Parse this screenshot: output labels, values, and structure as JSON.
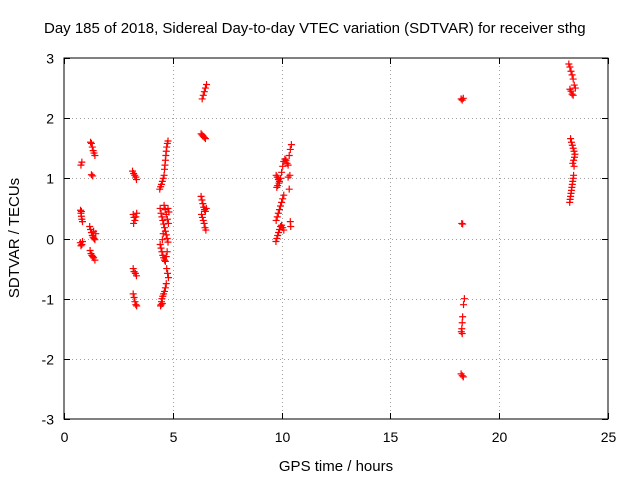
{
  "chart_data": {
    "type": "scatter",
    "title": "Day 185 of 2018, Sidereal Day-to-day VTEC variation (SDTVAR) for receiver sthg",
    "xlabel": "GPS time / hours",
    "ylabel": "SDTVAR / TECUs",
    "xlim": [
      0,
      25
    ],
    "ylim": [
      -3,
      3
    ],
    "xticks": [
      0,
      5,
      10,
      15,
      20,
      25
    ],
    "yticks": [
      -3,
      -2,
      -1,
      0,
      1,
      2,
      3
    ],
    "grid": true,
    "legend": "none",
    "marker": "plus",
    "color": "#ff0000",
    "series": [
      {
        "name": "SDTVAR",
        "points": [
          [
            0.78,
            1.22
          ],
          [
            0.82,
            1.27
          ],
          [
            0.76,
            0.47
          ],
          [
            0.78,
            0.42
          ],
          [
            0.8,
            0.37
          ],
          [
            0.82,
            0.32
          ],
          [
            0.85,
            0.28
          ],
          [
            0.8,
            0.45
          ],
          [
            0.75,
            -0.07
          ],
          [
            0.78,
            -0.12
          ],
          [
            0.82,
            -0.1
          ],
          [
            0.85,
            -0.05
          ],
          [
            1.22,
            1.6
          ],
          [
            1.26,
            1.58
          ],
          [
            1.3,
            1.52
          ],
          [
            1.34,
            1.46
          ],
          [
            1.38,
            1.42
          ],
          [
            1.42,
            1.38
          ],
          [
            1.26,
            1.06
          ],
          [
            1.32,
            1.04
          ],
          [
            1.18,
            0.2
          ],
          [
            1.22,
            0.15
          ],
          [
            1.26,
            0.1
          ],
          [
            1.3,
            0.05
          ],
          [
            1.34,
            0.02
          ],
          [
            1.38,
            0.0
          ],
          [
            1.42,
            -0.02
          ],
          [
            1.46,
            0.08
          ],
          [
            1.36,
            0.12
          ],
          [
            1.2,
            -0.2
          ],
          [
            1.24,
            -0.25
          ],
          [
            1.28,
            -0.28
          ],
          [
            1.32,
            -0.3
          ],
          [
            1.36,
            -0.32
          ],
          [
            1.42,
            -0.36
          ],
          [
            3.15,
            1.12
          ],
          [
            3.2,
            1.08
          ],
          [
            3.25,
            1.05
          ],
          [
            3.3,
            1.02
          ],
          [
            3.33,
            0.98
          ],
          [
            3.18,
            0.4
          ],
          [
            3.22,
            0.35
          ],
          [
            3.26,
            0.3
          ],
          [
            3.3,
            0.36
          ],
          [
            3.34,
            0.42
          ],
          [
            3.2,
            0.25
          ],
          [
            3.18,
            -0.5
          ],
          [
            3.22,
            -0.55
          ],
          [
            3.28,
            -0.58
          ],
          [
            3.33,
            -0.62
          ],
          [
            3.18,
            -0.92
          ],
          [
            3.22,
            -0.98
          ],
          [
            3.26,
            -1.05
          ],
          [
            3.3,
            -1.1
          ],
          [
            3.34,
            -1.12
          ],
          [
            4.4,
            0.82
          ],
          [
            4.44,
            0.86
          ],
          [
            4.48,
            0.9
          ],
          [
            4.52,
            0.95
          ],
          [
            4.56,
            1.0
          ],
          [
            4.6,
            1.05
          ],
          [
            4.62,
            1.15
          ],
          [
            4.64,
            1.22
          ],
          [
            4.66,
            1.3
          ],
          [
            4.68,
            1.38
          ],
          [
            4.7,
            1.45
          ],
          [
            4.72,
            1.52
          ],
          [
            4.75,
            1.58
          ],
          [
            4.78,
            1.62
          ],
          [
            4.42,
            0.5
          ],
          [
            4.46,
            0.42
          ],
          [
            4.5,
            0.36
          ],
          [
            4.54,
            0.3
          ],
          [
            4.58,
            0.24
          ],
          [
            4.62,
            0.18
          ],
          [
            4.66,
            0.12
          ],
          [
            4.7,
            0.06
          ],
          [
            4.74,
            0.0
          ],
          [
            4.78,
            -0.06
          ],
          [
            4.42,
            -0.1
          ],
          [
            4.46,
            -0.16
          ],
          [
            4.5,
            -0.22
          ],
          [
            4.54,
            -0.28
          ],
          [
            4.58,
            -0.32
          ],
          [
            4.62,
            -0.36
          ],
          [
            4.66,
            -0.38
          ],
          [
            4.7,
            -0.3
          ],
          [
            4.74,
            -0.22
          ],
          [
            4.78,
            0.5
          ],
          [
            4.82,
            0.44
          ],
          [
            4.6,
            0.55
          ],
          [
            4.65,
            0.48
          ],
          [
            4.7,
            0.4
          ],
          [
            4.75,
            0.32
          ],
          [
            4.8,
            0.25
          ],
          [
            4.56,
            0.08
          ],
          [
            4.52,
            -0.02
          ],
          [
            4.72,
            -0.5
          ],
          [
            4.76,
            -0.58
          ],
          [
            4.8,
            -0.65
          ],
          [
            4.7,
            -0.75
          ],
          [
            4.66,
            -0.82
          ],
          [
            4.62,
            -0.88
          ],
          [
            4.58,
            -0.92
          ],
          [
            4.54,
            -0.96
          ],
          [
            4.5,
            -1.0
          ],
          [
            4.48,
            -1.05
          ],
          [
            4.46,
            -1.1
          ],
          [
            4.44,
            -1.12
          ],
          [
            4.52,
            -1.08
          ],
          [
            6.35,
            2.32
          ],
          [
            6.4,
            2.38
          ],
          [
            6.45,
            2.44
          ],
          [
            6.5,
            2.5
          ],
          [
            6.55,
            2.56
          ],
          [
            6.3,
            1.74
          ],
          [
            6.35,
            1.72
          ],
          [
            6.4,
            1.7
          ],
          [
            6.45,
            1.68
          ],
          [
            6.5,
            1.66
          ],
          [
            6.3,
            0.7
          ],
          [
            6.34,
            0.64
          ],
          [
            6.38,
            0.58
          ],
          [
            6.42,
            0.52
          ],
          [
            6.46,
            0.48
          ],
          [
            6.5,
            0.45
          ],
          [
            6.54,
            0.5
          ],
          [
            6.32,
            0.4
          ],
          [
            6.36,
            0.35
          ],
          [
            6.4,
            0.3
          ],
          [
            6.44,
            0.25
          ],
          [
            6.48,
            0.18
          ],
          [
            6.52,
            0.14
          ],
          [
            9.75,
            1.05
          ],
          [
            9.8,
            1.02
          ],
          [
            9.85,
            0.98
          ],
          [
            9.9,
            0.95
          ],
          [
            9.95,
            1.0
          ],
          [
            10.0,
            1.1
          ],
          [
            10.05,
            1.2
          ],
          [
            10.1,
            1.28
          ],
          [
            10.15,
            1.32
          ],
          [
            10.2,
            1.3
          ],
          [
            10.25,
            1.25
          ],
          [
            10.3,
            1.22
          ],
          [
            10.35,
            1.38
          ],
          [
            10.4,
            1.48
          ],
          [
            10.45,
            1.56
          ],
          [
            9.78,
            0.85
          ],
          [
            9.82,
            0.88
          ],
          [
            9.88,
            0.92
          ],
          [
            10.3,
            1.02
          ],
          [
            10.38,
            1.05
          ],
          [
            10.35,
            0.82
          ],
          [
            9.75,
            0.3
          ],
          [
            9.8,
            0.36
          ],
          [
            9.85,
            0.42
          ],
          [
            9.9,
            0.48
          ],
          [
            9.95,
            0.54
          ],
          [
            10.0,
            0.6
          ],
          [
            10.05,
            0.66
          ],
          [
            10.1,
            0.72
          ],
          [
            9.74,
            -0.05
          ],
          [
            9.78,
            0.0
          ],
          [
            9.82,
            0.05
          ],
          [
            9.86,
            0.1
          ],
          [
            9.9,
            0.15
          ],
          [
            9.95,
            0.2
          ],
          [
            10.0,
            0.22
          ],
          [
            10.05,
            0.18
          ],
          [
            10.1,
            0.14
          ],
          [
            10.4,
            0.28
          ],
          [
            10.42,
            0.2
          ],
          [
            18.25,
            2.32
          ],
          [
            18.3,
            2.3
          ],
          [
            18.35,
            2.33
          ],
          [
            18.28,
            0.25
          ],
          [
            18.32,
            0.24
          ],
          [
            18.4,
            -1.0
          ],
          [
            18.36,
            -1.1
          ],
          [
            18.32,
            -1.3
          ],
          [
            18.3,
            -1.4
          ],
          [
            18.28,
            -1.5
          ],
          [
            18.26,
            -1.55
          ],
          [
            18.3,
            -1.58
          ],
          [
            18.25,
            -2.25
          ],
          [
            18.3,
            -2.28
          ],
          [
            18.35,
            -2.3
          ],
          [
            23.2,
            2.9
          ],
          [
            23.25,
            2.85
          ],
          [
            23.3,
            2.78
          ],
          [
            23.35,
            2.72
          ],
          [
            23.4,
            2.65
          ],
          [
            23.45,
            2.55
          ],
          [
            23.5,
            2.5
          ],
          [
            23.25,
            2.48
          ],
          [
            23.3,
            2.45
          ],
          [
            23.35,
            2.4
          ],
          [
            23.4,
            2.38
          ],
          [
            23.28,
            1.66
          ],
          [
            23.32,
            1.6
          ],
          [
            23.36,
            1.55
          ],
          [
            23.4,
            1.5
          ],
          [
            23.44,
            1.45
          ],
          [
            23.48,
            1.4
          ],
          [
            23.46,
            1.35
          ],
          [
            23.42,
            1.3
          ],
          [
            23.38,
            1.25
          ],
          [
            23.44,
            1.2
          ],
          [
            23.42,
            1.05
          ],
          [
            23.4,
            1.0
          ],
          [
            23.38,
            0.95
          ],
          [
            23.36,
            0.9
          ],
          [
            23.34,
            0.85
          ],
          [
            23.32,
            0.8
          ],
          [
            23.3,
            0.75
          ],
          [
            23.28,
            0.7
          ],
          [
            23.26,
            0.65
          ],
          [
            23.24,
            0.6
          ]
        ]
      }
    ]
  }
}
